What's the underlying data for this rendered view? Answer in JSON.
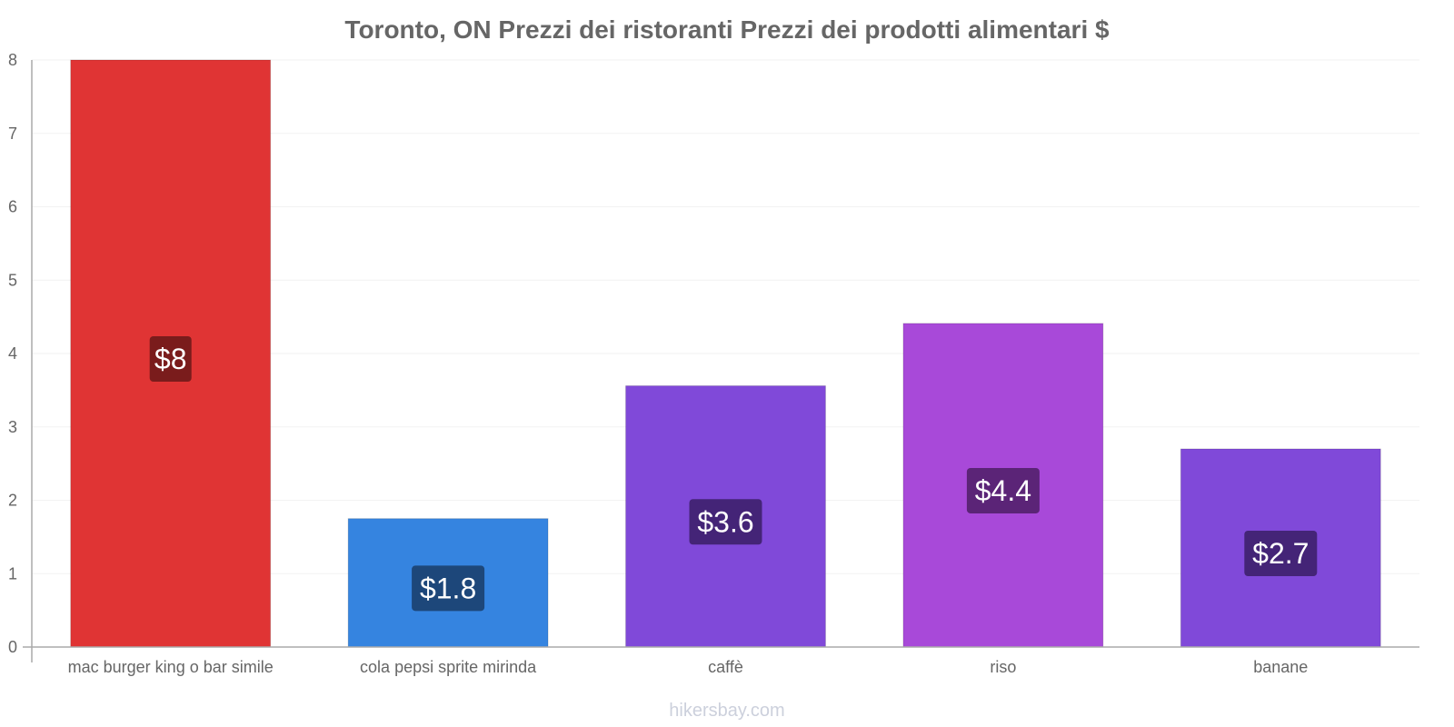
{
  "chart_data": {
    "type": "bar",
    "title": "Toronto, ON Prezzi dei ristoranti Prezzi dei prodotti alimentari $",
    "categories": [
      "mac burger king o bar simile",
      "cola pepsi sprite mirinda",
      "caffè",
      "riso",
      "banane"
    ],
    "values": [
      8,
      1.75,
      3.56,
      4.41,
      2.7
    ],
    "value_labels": [
      "$8",
      "$1.8",
      "$3.6",
      "$4.4",
      "$2.7"
    ],
    "colors": [
      "#e03434",
      "#3584e0",
      "#8049d9",
      "#a849d9",
      "#8049d9"
    ],
    "label_bg_colors": [
      "#7a1c1c",
      "#1d477a",
      "#442477",
      "#5b2477",
      "#442477"
    ],
    "yticks": [
      "0",
      "1",
      "2",
      "3",
      "4",
      "5",
      "6",
      "7",
      "8"
    ],
    "ylim": [
      0,
      8
    ],
    "xlabel": "",
    "ylabel": "",
    "grid": true
  },
  "source_text": "hikersbay.com"
}
